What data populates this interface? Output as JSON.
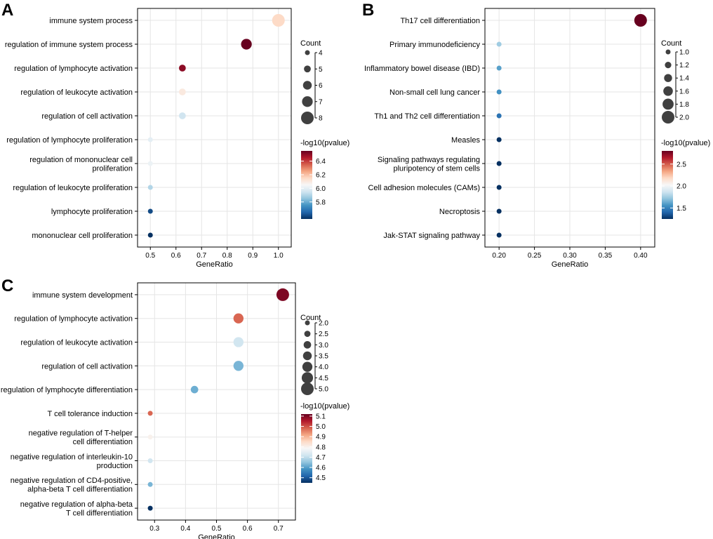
{
  "chart_data": [
    {
      "panel_label": "A",
      "type": "scatter",
      "xlabel": "GeneRatio",
      "xlim": [
        0.45,
        1.05
      ],
      "xticks": [
        "0.5",
        "0.6",
        "0.7",
        "0.8",
        "0.9",
        "1.0"
      ],
      "xtick_values": [
        0.5,
        0.6,
        0.7,
        0.8,
        0.9,
        1.0
      ],
      "categories": [
        "immune system process",
        "regulation of immune system process",
        "regulation of lymphocyte activation",
        "regulation of leukocyte activation",
        "regulation of cell activation",
        "regulation of lymphocyte proliferation",
        "regulation of mononuclear cell\nproliferation",
        "regulation of leukocyte proliferation",
        "lymphocyte proliferation",
        "mononuclear cell proliferation"
      ],
      "gene_ratio": [
        1.0,
        0.875,
        0.625,
        0.625,
        0.625,
        0.5,
        0.5,
        0.5,
        0.5,
        0.5
      ],
      "count": [
        8,
        7,
        5,
        5,
        5,
        4,
        4,
        4,
        4,
        4
      ],
      "neg_log10_pvalue": [
        6.15,
        6.55,
        6.5,
        6.1,
        5.95,
        6.0,
        6.02,
        5.9,
        5.6,
        5.55
      ],
      "size_legend": {
        "title": "Count",
        "values": [
          4,
          5,
          6,
          7,
          8
        ],
        "labels": [
          "4",
          "5",
          "6",
          "7",
          "8"
        ]
      },
      "color_legend": {
        "title": "-log10(pvalue)",
        "min": 5.55,
        "max": 6.55,
        "ticks": [
          5.8,
          6.0,
          6.2,
          6.4
        ],
        "labels": [
          "5.8",
          "6.0",
          "6.2",
          "6.4"
        ]
      }
    },
    {
      "panel_label": "B",
      "type": "scatter",
      "xlabel": "GeneRatio",
      "xlim": [
        0.18,
        0.42
      ],
      "xticks": [
        "0.20",
        "0.25",
        "0.30",
        "0.35",
        "0.40"
      ],
      "xtick_values": [
        0.2,
        0.25,
        0.3,
        0.35,
        0.4
      ],
      "categories": [
        "Th17 cell differentiation",
        "Primary immunodeficiency",
        "Inflammatory bowel disease (IBD)",
        "Non-small cell lung cancer",
        "Th1 and Th2 cell differentiation",
        "Measles",
        "Signaling pathways regulating\npluripotency of stem cells",
        "Cell adhesion molecules (CAMs)",
        "Necroptosis",
        "Jak-STAT signaling pathway"
      ],
      "gene_ratio": [
        0.4,
        0.2,
        0.2,
        0.2,
        0.2,
        0.2,
        0.2,
        0.2,
        0.2,
        0.2
      ],
      "count": [
        2,
        1,
        1,
        1,
        1,
        1,
        1,
        1,
        1,
        1
      ],
      "neg_log10_pvalue": [
        2.8,
        1.75,
        1.6,
        1.55,
        1.45,
        1.25,
        1.25,
        1.25,
        1.25,
        1.25
      ],
      "size_legend": {
        "title": "Count",
        "values": [
          1.0,
          1.2,
          1.4,
          1.6,
          1.8,
          2.0
        ],
        "labels": [
          "1.0",
          "1.2",
          "1.4",
          "1.6",
          "1.8",
          "2.0"
        ]
      },
      "color_legend": {
        "title": "-log10(pvalue)",
        "min": 1.25,
        "max": 2.8,
        "ticks": [
          1.5,
          2.0,
          2.5
        ],
        "labels": [
          "1.5",
          "2.0",
          "2.5"
        ]
      }
    },
    {
      "panel_label": "C",
      "type": "scatter",
      "xlabel": "GeneRatio",
      "xlim": [
        0.245,
        0.755
      ],
      "xticks": [
        "0.3",
        "0.4",
        "0.5",
        "0.6",
        "0.7"
      ],
      "xtick_values": [
        0.3,
        0.4,
        0.5,
        0.6,
        0.7
      ],
      "categories": [
        "immune system development",
        "regulation of lymphocyte activation",
        "regulation of leukocyte activation",
        "regulation of cell activation",
        "regulation of lymphocyte differentiation",
        "T cell tolerance induction",
        "negative regulation of T-helper\ncell differentiation",
        "negative regulation of interleukin-10\nproduction",
        "negative regulation of CD4-positive,\nalpha-beta T cell differentiation",
        "negative regulation of alpha-beta\nT cell differentiation"
      ],
      "gene_ratio": [
        0.714,
        0.571,
        0.571,
        0.571,
        0.429,
        0.286,
        0.286,
        0.286,
        0.286,
        0.286
      ],
      "count": [
        5,
        4,
        4,
        4,
        3,
        2,
        2,
        2,
        2,
        2
      ],
      "neg_log10_pvalue": [
        5.1,
        4.98,
        4.72,
        4.63,
        4.62,
        4.98,
        4.8,
        4.72,
        4.63,
        4.45
      ],
      "size_legend": {
        "title": "Count",
        "values": [
          2.0,
          2.5,
          3.0,
          3.5,
          4.0,
          4.5,
          5.0
        ],
        "labels": [
          "2.0",
          "2.5",
          "3.0",
          "3.5",
          "4.0",
          "4.5",
          "5.0"
        ]
      },
      "color_legend": {
        "title": "-log10(pvalue)",
        "min": 4.45,
        "max": 5.12,
        "ticks": [
          4.5,
          4.6,
          4.7,
          4.8,
          4.9,
          5.0,
          5.1
        ],
        "labels": [
          "4.5",
          "4.6",
          "4.7",
          "4.8",
          "4.9",
          "5.0",
          "5.1"
        ]
      }
    }
  ],
  "colors": {
    "dot_legend": "#404040",
    "grid": "#e5e5e5",
    "axis": "#000000",
    "scale": [
      "#67001f",
      "#b2182b",
      "#d6604d",
      "#f4a582",
      "#fddbc7",
      "#f7f7f7",
      "#d1e5f0",
      "#92c5de",
      "#4393c3",
      "#2166ac",
      "#053061"
    ]
  }
}
